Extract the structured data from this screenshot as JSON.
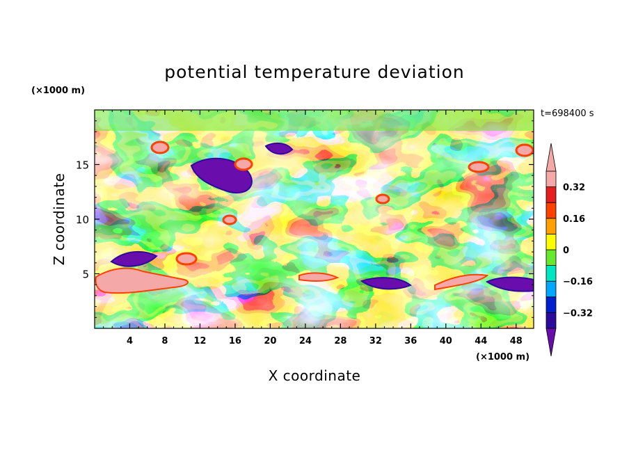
{
  "chart_data": {
    "type": "heatmap",
    "title": "potential temperature deviation",
    "time_label": "t=698400 s",
    "xlabel": "X coordinate",
    "ylabel": "Z coordinate",
    "x_unit": "(×1000 m)",
    "y_unit": "(×1000 m)",
    "xlim": [
      0,
      50
    ],
    "ylim": [
      0,
      20
    ],
    "x_ticks": [
      4,
      8,
      12,
      16,
      20,
      24,
      28,
      32,
      36,
      40,
      44,
      48
    ],
    "x_tick_labels": [
      "4",
      "8",
      "12",
      "16",
      "20",
      "24",
      "28",
      "32",
      "36",
      "40",
      "44",
      "48"
    ],
    "y_ticks": [
      5,
      10,
      15
    ],
    "y_tick_labels": [
      "5",
      "10",
      "15"
    ],
    "colorbar": {
      "levels": [
        -0.4,
        -0.32,
        -0.24,
        -0.16,
        -0.08,
        0,
        0.08,
        0.16,
        0.24,
        0.32,
        0.4
      ],
      "labeled_values": [
        0.32,
        0.16,
        0,
        -0.16,
        -0.32
      ],
      "labels": [
        "0.32",
        "0.16",
        "0",
        "−0.16",
        "−0.32"
      ],
      "colors": [
        "#6a0dad",
        "#2d0a9e",
        "#0020d0",
        "#00a8ff",
        "#00e6c0",
        "#66e830",
        "#ffff00",
        "#ffa000",
        "#ff4000",
        "#e81e1e",
        "#f5a8a8"
      ],
      "colors_order": "low to high",
      "over_color": "#f5a8a8",
      "under_color": "#6a0dad",
      "extend": "both"
    }
  }
}
